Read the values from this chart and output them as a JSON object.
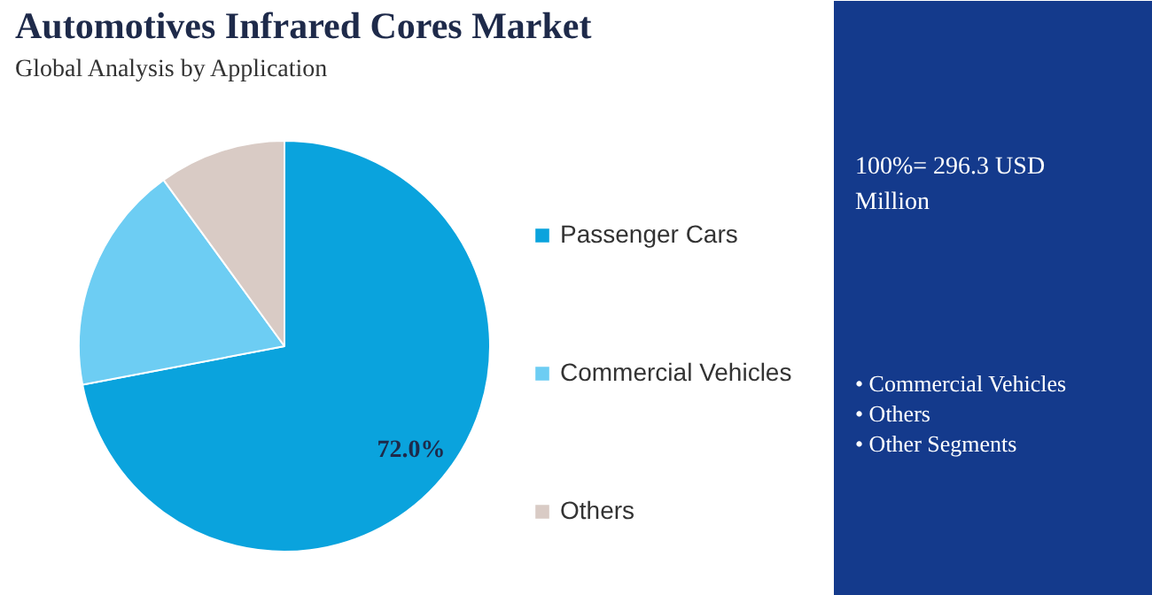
{
  "chart_data": {
    "type": "pie",
    "title": "Automotives Infrared Cores Market",
    "subtitle": "Global Analysis by Application",
    "categories": [
      "Passenger Cars",
      "Commercial Vehicles",
      "Others"
    ],
    "values": [
      72.0,
      18.0,
      10.0
    ],
    "colors": [
      "#0aa3dd",
      "#6dcdf3",
      "#d9cbc5"
    ],
    "value_labels": [
      "72.0%",
      null,
      null
    ],
    "legend": "right",
    "annotations": [
      "100%= 296.3 USD Million",
      "• Commercial Vehicles",
      "• Others",
      "• Other Segments"
    ]
  }
}
